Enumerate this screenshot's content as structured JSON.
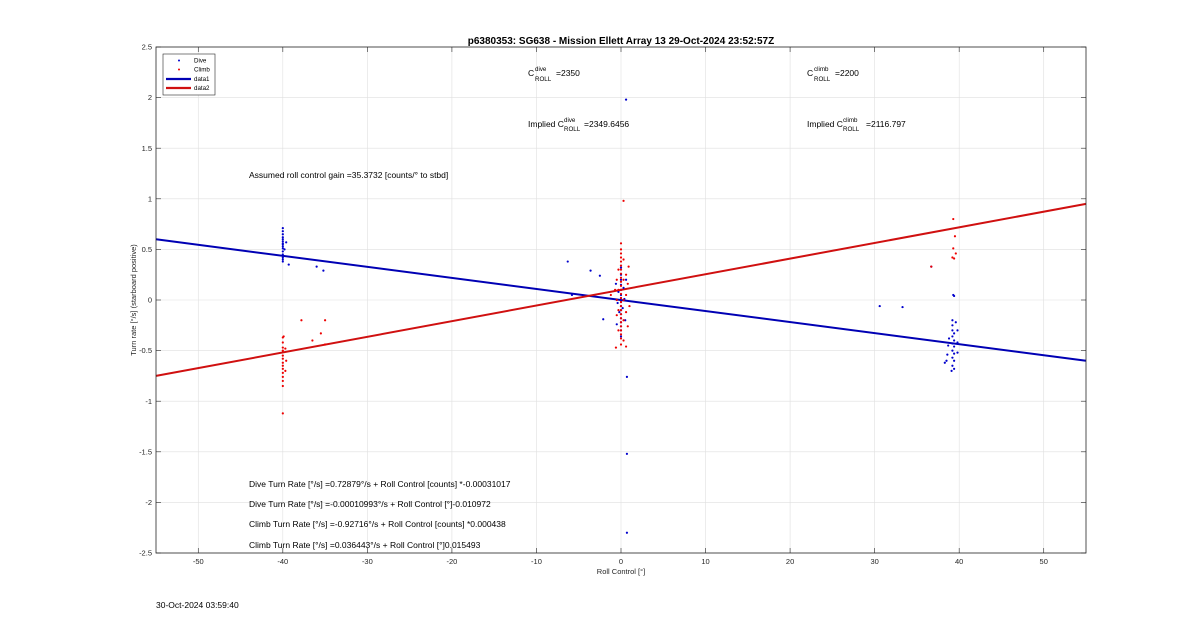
{
  "chart_data": {
    "type": "scatter",
    "title": "p6380353: SG638 - Mission Ellett Array 13 29-Oct-2024 23:52:57Z",
    "xlabel": "Roll Control [°]",
    "ylabel": "Turn rate [°/s] (starboard positive)",
    "xlim": [
      -55,
      55
    ],
    "ylim": [
      -2.5,
      2.5
    ],
    "xticks": [
      -50,
      -40,
      -30,
      -20,
      -10,
      0,
      10,
      20,
      30,
      40,
      50
    ],
    "yticks": [
      -2.5,
      -2,
      -1.5,
      -1,
      -0.5,
      0,
      0.5,
      1,
      1.5,
      2,
      2.5
    ],
    "grid": true,
    "legend_position": "top-left",
    "colors": {
      "dive": "#0000cc",
      "climb": "#ee0000",
      "data1": "#0000b4",
      "data2": "#d01010"
    },
    "legend": [
      "Dive",
      "Climb",
      "data1",
      "data2"
    ],
    "series": [
      {
        "name": "Dive",
        "kind": "points",
        "points": [
          [
            -40,
            0.71
          ],
          [
            -40,
            0.68
          ],
          [
            -40,
            0.65
          ],
          [
            -40,
            0.62
          ],
          [
            -40,
            0.6
          ],
          [
            -40,
            0.58
          ],
          [
            -40,
            0.56
          ],
          [
            -40,
            0.55
          ],
          [
            -40,
            0.53
          ],
          [
            -40,
            0.51
          ],
          [
            -40,
            0.48
          ],
          [
            -40,
            0.45
          ],
          [
            -40,
            0.42
          ],
          [
            -40,
            0.4
          ],
          [
            -40,
            0.38
          ],
          [
            -39.8,
            0.5
          ],
          [
            -39.6,
            0.57
          ],
          [
            -39.3,
            0.35
          ],
          [
            -36,
            0.33
          ],
          [
            -35.2,
            0.29
          ],
          [
            -6.3,
            0.38
          ],
          [
            -3.6,
            0.29
          ],
          [
            -2.5,
            0.24
          ],
          [
            -5.8,
            0.05
          ],
          [
            -2.1,
            -0.19
          ],
          [
            0,
            0.32
          ],
          [
            0,
            0.25
          ],
          [
            0,
            0.2
          ],
          [
            0,
            0.15
          ],
          [
            0,
            0.1
          ],
          [
            0,
            0.05
          ],
          [
            0,
            0.02
          ],
          [
            0,
            -0.02
          ],
          [
            0,
            -0.06
          ],
          [
            0,
            -0.1
          ],
          [
            0,
            -0.14
          ],
          [
            0,
            -0.18
          ],
          [
            0,
            -0.22
          ],
          [
            0,
            -0.26
          ],
          [
            0,
            -0.3
          ],
          [
            0,
            -0.36
          ],
          [
            -0.3,
            0.08
          ],
          [
            -0.4,
            -0.03
          ],
          [
            -0.2,
            -0.12
          ],
          [
            0.3,
            0.12
          ],
          [
            0.4,
            0.01
          ],
          [
            0.2,
            -0.08
          ],
          [
            0.5,
            -0.2
          ],
          [
            -0.5,
            -0.24
          ],
          [
            0.6,
            0.2
          ],
          [
            -0.6,
            0.16
          ],
          [
            0.6,
            1.98
          ],
          [
            0.7,
            -0.76
          ],
          [
            0.7,
            -1.52
          ],
          [
            0.7,
            -2.3
          ],
          [
            30.6,
            -0.06
          ],
          [
            33.3,
            -0.07
          ],
          [
            36.7,
            0.33
          ],
          [
            39.3,
            0.05
          ],
          [
            39.4,
            0.04
          ],
          [
            39.2,
            -0.2
          ],
          [
            39.2,
            -0.25
          ],
          [
            39.2,
            -0.3
          ],
          [
            39.4,
            -0.33
          ],
          [
            39.2,
            -0.36
          ],
          [
            39.4,
            -0.4
          ],
          [
            39.2,
            -0.43
          ],
          [
            39.4,
            -0.46
          ],
          [
            39.2,
            -0.5
          ],
          [
            39.4,
            -0.53
          ],
          [
            39.2,
            -0.57
          ],
          [
            39.4,
            -0.6
          ],
          [
            39.2,
            -0.65
          ],
          [
            39.4,
            -0.68
          ],
          [
            38.8,
            -0.38
          ],
          [
            38.7,
            -0.45
          ],
          [
            38.6,
            -0.54
          ],
          [
            38.5,
            -0.6
          ],
          [
            38.3,
            -0.62
          ],
          [
            39.8,
            -0.3
          ],
          [
            39.8,
            -0.42
          ],
          [
            39.8,
            -0.52
          ],
          [
            39.6,
            -0.22
          ],
          [
            39.1,
            -0.7
          ]
        ]
      },
      {
        "name": "Climb",
        "kind": "points",
        "points": [
          [
            -40,
            -0.37
          ],
          [
            -40,
            -0.42
          ],
          [
            -40,
            -0.47
          ],
          [
            -40,
            -0.5
          ],
          [
            -40,
            -0.55
          ],
          [
            -40,
            -0.58
          ],
          [
            -40,
            -0.62
          ],
          [
            -40,
            -0.65
          ],
          [
            -40,
            -0.68
          ],
          [
            -40,
            -0.72
          ],
          [
            -40,
            -0.76
          ],
          [
            -40,
            -0.8
          ],
          [
            -40,
            -0.85
          ],
          [
            -39.7,
            -0.48
          ],
          [
            -39.6,
            -0.6
          ],
          [
            -39.7,
            -0.7
          ],
          [
            -39.9,
            -0.36
          ],
          [
            -40,
            -1.12
          ],
          [
            -36.5,
            -0.4
          ],
          [
            -37.8,
            -0.2
          ],
          [
            -35.5,
            -0.33
          ],
          [
            -35,
            -0.2
          ],
          [
            -35,
            -0.44
          ],
          [
            0,
            0.56
          ],
          [
            0,
            0.5
          ],
          [
            0,
            0.46
          ],
          [
            0,
            0.42
          ],
          [
            0,
            0.38
          ],
          [
            0,
            0.34
          ],
          [
            0,
            0.3
          ],
          [
            0,
            0.26
          ],
          [
            0,
            0.22
          ],
          [
            0,
            0.18
          ],
          [
            0,
            0.14
          ],
          [
            0,
            0.1
          ],
          [
            0,
            0.06
          ],
          [
            0,
            0.02
          ],
          [
            0,
            -0.02
          ],
          [
            0,
            -0.06
          ],
          [
            0,
            -0.1
          ],
          [
            0,
            -0.14
          ],
          [
            0,
            -0.18
          ],
          [
            0,
            -0.22
          ],
          [
            0,
            -0.26
          ],
          [
            0,
            -0.3
          ],
          [
            0,
            -0.34
          ],
          [
            0,
            -0.38
          ],
          [
            0,
            -0.44
          ],
          [
            -0.3,
            0.3
          ],
          [
            -0.3,
            0.1
          ],
          [
            -0.3,
            -0.1
          ],
          [
            -0.3,
            -0.3
          ],
          [
            0.3,
            0.4
          ],
          [
            0.3,
            0.2
          ],
          [
            0.3,
            0
          ],
          [
            0.3,
            -0.2
          ],
          [
            0.3,
            -0.4
          ],
          [
            -0.5,
            0.2
          ],
          [
            -0.5,
            0
          ],
          [
            -0.5,
            -0.15
          ],
          [
            0.6,
            0.25
          ],
          [
            0.6,
            0.05
          ],
          [
            0.6,
            -0.12
          ],
          [
            -0.7,
            0.1
          ],
          [
            0.8,
            0.16
          ],
          [
            -1.2,
            0.05
          ],
          [
            1.0,
            -0.06
          ],
          [
            0.9,
            0.33
          ],
          [
            0.8,
            -0.26
          ],
          [
            0.3,
            0.98
          ],
          [
            -0.6,
            -0.47
          ],
          [
            0.6,
            -0.46
          ],
          [
            39.3,
            0.8
          ],
          [
            39.5,
            0.63
          ],
          [
            39.3,
            0.51
          ],
          [
            39.6,
            0.46
          ],
          [
            39.2,
            0.42
          ],
          [
            39.4,
            0.41
          ],
          [
            36.7,
            0.33
          ]
        ]
      },
      {
        "name": "data1",
        "kind": "line",
        "x": [
          -55,
          55
        ],
        "y": [
          0.6,
          -0.6
        ]
      },
      {
        "name": "data2",
        "kind": "line",
        "x": [
          -55,
          55
        ],
        "y": [
          -0.75,
          0.95
        ]
      }
    ],
    "annotations": {
      "c_dive_base": "C",
      "c_dive_sup": "dive",
      "c_dive_sub": "ROLL",
      "c_dive_value": "=2350",
      "c_climb_base": "C",
      "c_climb_sup": "climb",
      "c_climb_sub": "ROLL",
      "c_climb_value": "=2200",
      "implied_dive_prefix": "Implied C",
      "implied_dive_sup": "dive",
      "implied_dive_sub": "ROLL",
      "implied_dive_value": "=2349.6456",
      "implied_climb_prefix": "Implied C",
      "implied_climb_sup": "climb",
      "implied_climb_sub": "ROLL",
      "implied_climb_value": "=2116.797",
      "gain": "Assumed roll control gain =35.3732 [counts/° to stbd]",
      "eq1": "Dive Turn Rate [°/s] =0.72879°/s + Roll Control [counts] *-0.00031017",
      "eq2": "Dive Turn Rate [°/s] =-0.00010993°/s + Roll Control [°]-0.010972",
      "eq3": "Climb Turn Rate [°/s] =-0.92716°/s + Roll Control [counts] *0.000438",
      "eq4": "Climb Turn Rate [°/s] =0.036443°/s + Roll Control [°]0.015493"
    }
  },
  "footer": {
    "timestamp": "30-Oct-2024 03:59:40"
  }
}
